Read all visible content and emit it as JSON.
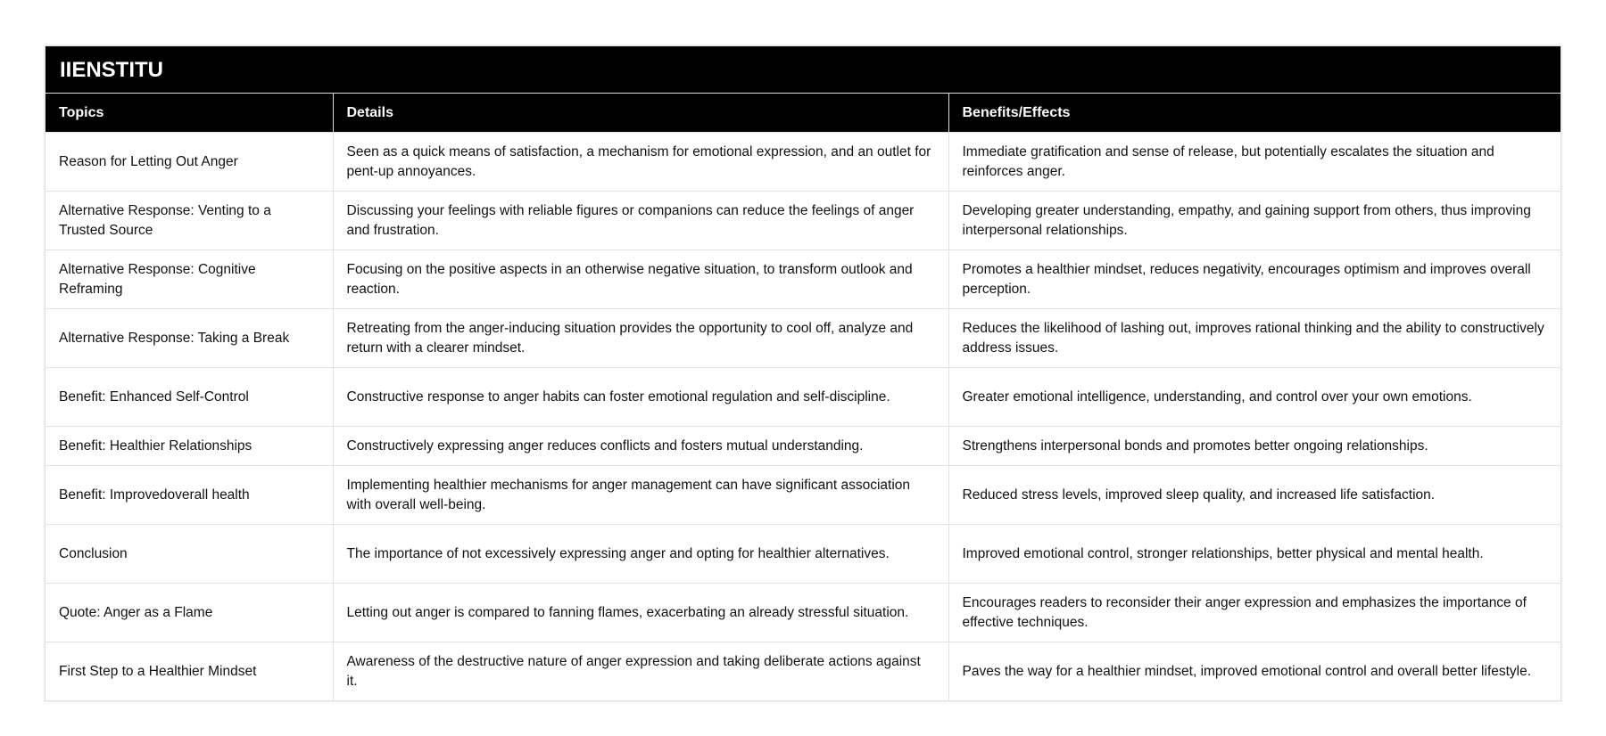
{
  "title": "IIENSTITU",
  "headers": [
    "Topics",
    "Details",
    "Benefits/Effects"
  ],
  "rows": [
    [
      "Reason for Letting Out Anger",
      "Seen as a quick means of satisfaction, a mechanism for emotional expression, and an outlet for pent-up annoyances.",
      "Immediate gratification and sense of release, but potentially escalates the situation and reinforces anger."
    ],
    [
      "Alternative Response: Venting to a Trusted Source",
      "Discussing your feelings with reliable figures or companions can reduce the feelings of anger and frustration.",
      "Developing greater understanding, empathy, and gaining support from others, thus improving interpersonal relationships."
    ],
    [
      "Alternative Response: Cognitive Reframing",
      "Focusing on the positive aspects in an otherwise negative situation, to transform outlook and reaction.",
      "Promotes a healthier mindset, reduces negativity, encourages optimism and improves overall perception."
    ],
    [
      "Alternative Response: Taking a Break",
      "Retreating from the anger-inducing situation provides the opportunity to cool off, analyze and return with a clearer mindset.",
      "Reduces the likelihood of lashing out, improves rational thinking and the ability to constructively address issues."
    ],
    [
      "Benefit: Enhanced Self-Control",
      "Constructive response to anger habits can foster emotional regulation and self-discipline.",
      "Greater emotional intelligence, understanding, and control over your own emotions."
    ],
    [
      "Benefit: Healthier Relationships",
      "Constructively expressing anger reduces conflicts and fosters mutual understanding.",
      "Strengthens interpersonal bonds and promotes better ongoing relationships."
    ],
    [
      "Benefit: Improvedoverall health",
      "Implementing healthier mechanisms for anger management can have significant association with overall well-being.",
      "Reduced stress levels, improved sleep quality, and increased life satisfaction."
    ],
    [
      "Conclusion",
      "The importance of not excessively expressing anger and opting for healthier alternatives.",
      "Improved emotional control, stronger relationships, better physical and mental health."
    ],
    [
      "Quote: Anger as a Flame",
      "Letting out anger is compared to fanning flames, exacerbating an already stressful situation.",
      "Encourages readers to reconsider their anger expression and emphasizes the importance of effective techniques."
    ],
    [
      "First Step to a Healthier Mindset",
      "Awareness of the destructive nature of anger expression and taking deliberate actions against it.",
      "Paves the way for a healthier mindset, improved emotional control and overall better lifestyle."
    ]
  ]
}
